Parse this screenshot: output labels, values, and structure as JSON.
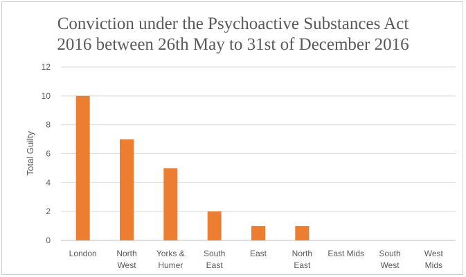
{
  "chart_data": {
    "type": "bar",
    "title_lines": [
      "Conviction under the Psychoactive Substances Act",
      "2016 between 26th May to 31st of December 2016"
    ],
    "xlabel": "",
    "ylabel": "Total Guilty",
    "ylim": [
      0,
      12
    ],
    "yticks": [
      0,
      2,
      4,
      6,
      8,
      10,
      12
    ],
    "grid": true,
    "legend": "none",
    "bar_color": "#ED7D31",
    "categories": [
      [
        "London"
      ],
      [
        "North",
        "West"
      ],
      [
        "Yorks &",
        "Humer"
      ],
      [
        "South",
        "East"
      ],
      [
        "East"
      ],
      [
        "North",
        "East"
      ],
      [
        "East Mids"
      ],
      [
        "South",
        "West"
      ],
      [
        "West",
        "Mids"
      ]
    ],
    "values": [
      10,
      7,
      5,
      2,
      1,
      1,
      0,
      0,
      0
    ]
  }
}
